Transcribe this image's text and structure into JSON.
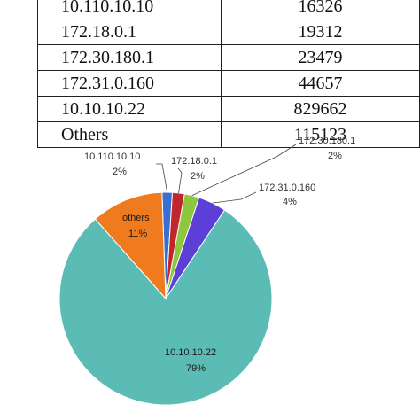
{
  "table": {
    "rows": [
      {
        "ip": "10.110.10.10",
        "count": "16326"
      },
      {
        "ip": "172.18.0.1",
        "count": "19312"
      },
      {
        "ip": "172.30.180.1",
        "count": "23479"
      },
      {
        "ip": "172.31.0.160",
        "count": "44657"
      },
      {
        "ip": "10.10.10.22",
        "count": "829662"
      },
      {
        "ip": "Others",
        "count": "115123"
      }
    ]
  },
  "chart_data": {
    "type": "pie",
    "slices": [
      {
        "label": "10.110.10.10",
        "pct_label": "2%",
        "value": 16326,
        "color": "#3a6fd1"
      },
      {
        "label": "172.18.0.1",
        "pct_label": "2%",
        "value": 19312,
        "color": "#c0262c"
      },
      {
        "label": "172.30.180.1",
        "pct_label": "2%",
        "value": 23479,
        "color": "#8dc63f"
      },
      {
        "label": "172.31.0.160",
        "pct_label": "4%",
        "value": 44657,
        "color": "#5b3fd6"
      },
      {
        "label": "10.10.10.22",
        "pct_label": "79%",
        "value": 829662,
        "color": "#5bbcb6"
      },
      {
        "label": "others",
        "pct_label": "11%",
        "value": 115123,
        "color": "#f07a1e"
      }
    ]
  }
}
